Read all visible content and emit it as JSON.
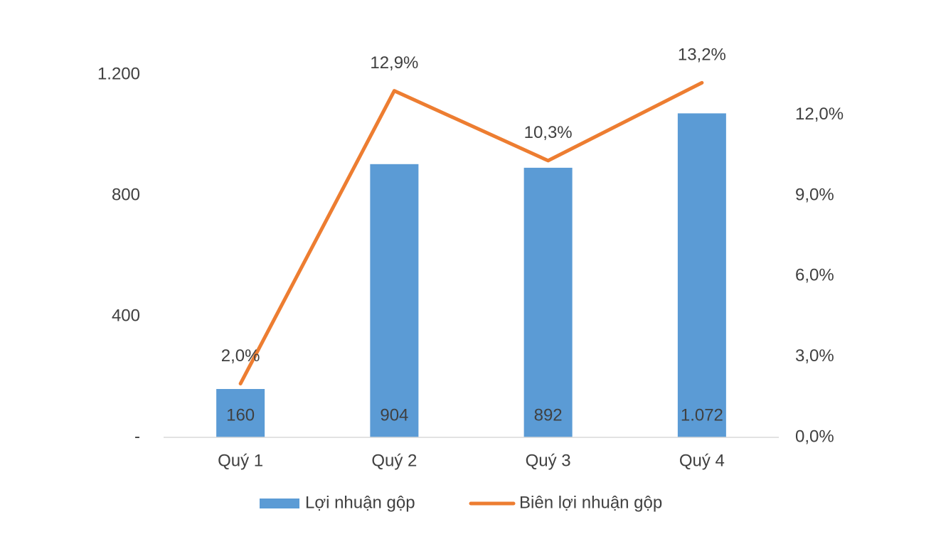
{
  "chart_data": {
    "type": "combo",
    "categories": [
      "Quý 1",
      "Quý 2",
      "Quý 3",
      "Quý 4"
    ],
    "series": [
      {
        "name": "Lợi nhuận gộp",
        "type": "bar",
        "color": "#5b9bd5",
        "values": [
          160,
          904,
          892,
          1072
        ],
        "value_labels": [
          "160",
          "904",
          "892",
          "1.072"
        ]
      },
      {
        "name": "Biên lợi nhuận gộp",
        "type": "line",
        "axis": "y2",
        "color": "#ed7d31",
        "values": [
          2.0,
          12.9,
          10.3,
          13.2
        ],
        "value_labels": [
          "2,0%",
          "12,9%",
          "10,3%",
          "13,2%"
        ]
      }
    ],
    "ylim": [
      0,
      1200
    ],
    "yticks": [
      {
        "value": 0,
        "label": "-"
      },
      400,
      800,
      {
        "value": 1200,
        "label": "1.200"
      }
    ],
    "y2lim": [
      0,
      13.5
    ],
    "y2ticks": [
      {
        "value": 0,
        "label": "0,0%"
      },
      {
        "value": 3,
        "label": "3,0%"
      },
      {
        "value": 6,
        "label": "6,0%"
      },
      {
        "value": 9,
        "label": "9,0%"
      },
      {
        "value": 12,
        "label": "12,0%"
      }
    ],
    "legend": "bottom"
  }
}
